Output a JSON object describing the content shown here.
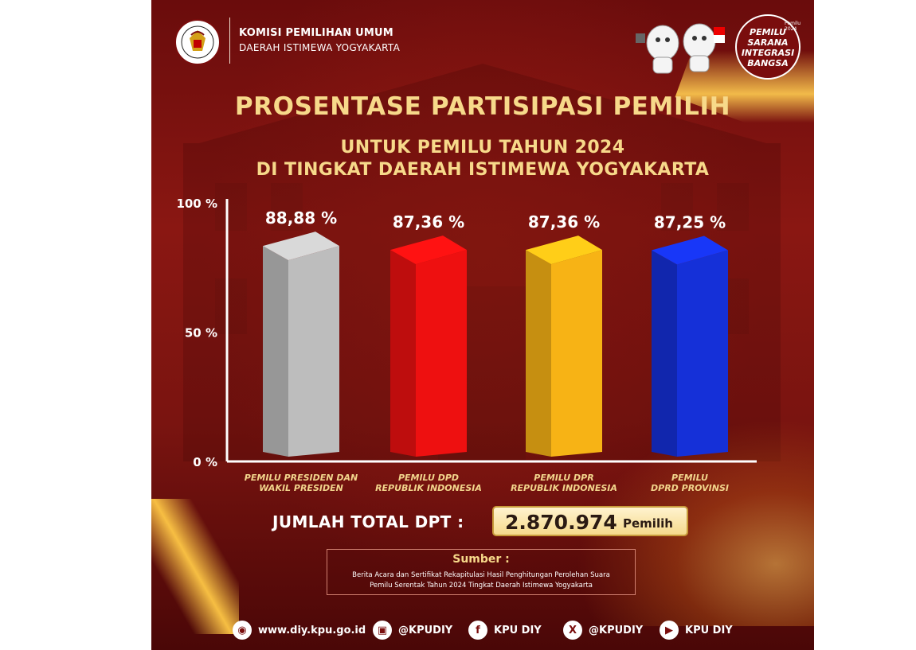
{
  "header": {
    "org_line1": "KOMISI PEMILIHAN UMUM",
    "org_line2": "DAERAH ISTIMEWA YOGYAKARTA",
    "badge_lines": [
      "PEMILU",
      "SARANA",
      "INTEGRASI",
      "BANGSA"
    ],
    "badge_small": "Pemilu 2024"
  },
  "title": "PROSENTASE PARTISIPASI PEMILIH",
  "subtitle1": "UNTUK PEMILU TAHUN 2024",
  "subtitle2": "DI TINGKAT DAERAH ISTIMEWA YOGYAKARTA",
  "chart_data": {
    "type": "bar",
    "title": "PROSENTASE PARTISIPASI PEMILIH",
    "categories": [
      [
        "PEMILU PRESIDEN DAN",
        "WAKIL PRESIDEN"
      ],
      [
        "PEMILU DPD",
        "REPUBLIK INDONESIA"
      ],
      [
        "PEMILU DPR",
        "REPUBLIK INDONESIA"
      ],
      [
        "PEMILU",
        "DPRD PROVINSI"
      ]
    ],
    "values": [
      88.88,
      87.36,
      87.36,
      87.25
    ],
    "value_labels": [
      "88,88 %",
      "87,36 %",
      "87,36 %",
      "87,25 %"
    ],
    "colors": [
      "#bdbdbd",
      "#ee1010",
      "#f7b315",
      "#1530d8"
    ],
    "yticks": [
      {
        "value": 0,
        "label": "0 %"
      },
      {
        "value": 50,
        "label": "50 %"
      },
      {
        "value": 100,
        "label": "100 %"
      }
    ],
    "ylim": [
      0,
      100
    ],
    "grid": false
  },
  "total": {
    "label": "JUMLAH TOTAL DPT :",
    "value": "2.870.974",
    "unit": "Pemilih"
  },
  "source": {
    "title": "Sumber :",
    "line1": "Berita Acara dan Sertifikat Rekapitulasi Hasil Penghitungan Perolehan Suara",
    "line2": "Pemilu Serentak Tahun 2024 Tingkat Daerah Istimewa Yogyakarta"
  },
  "footer": {
    "website": "www.diy.kpu.go.id",
    "instagram": "@KPUDIY",
    "facebook": "KPU DIY",
    "x": "@KPUDIY",
    "youtube": "KPU DIY"
  }
}
